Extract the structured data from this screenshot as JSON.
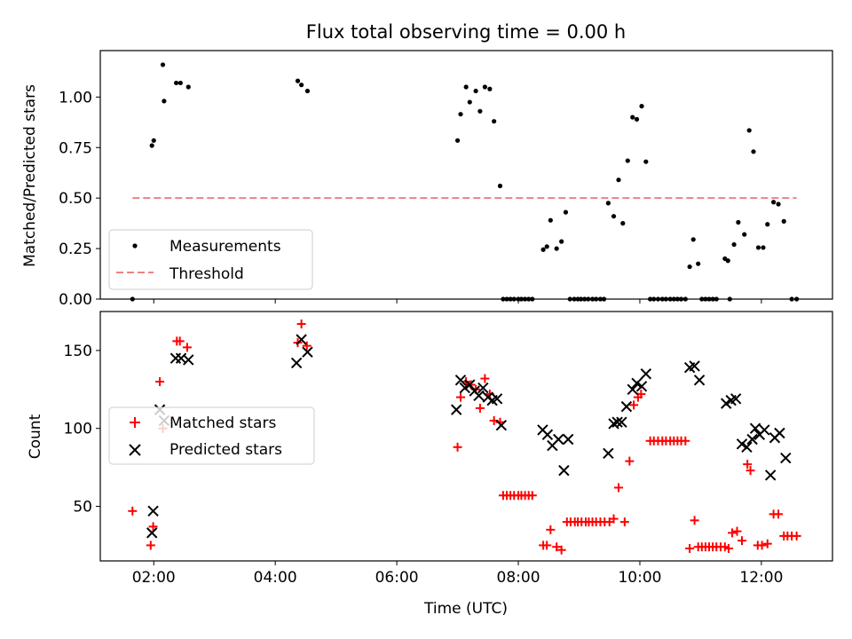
{
  "chart_data": [
    {
      "type": "scatter",
      "title": "Flux total observing time = 0.00 h",
      "xlabel": "",
      "ylabel": "Matched/Predicted stars",
      "xlim": [
        1.12,
        13.17
      ],
      "ylim": [
        0,
        1.23
      ],
      "yticks": [
        0.0,
        0.25,
        0.5,
        0.75,
        1.0
      ],
      "ytick_labels": [
        "0.00",
        "0.25",
        "0.50",
        "0.75",
        "1.00"
      ],
      "xticks": [
        2,
        4,
        6,
        8,
        10,
        12
      ],
      "legend_position": "lower-left",
      "series": [
        {
          "name": "Measurements",
          "kind": "points",
          "color": "#000000",
          "points": [
            [
              1.65,
              0
            ],
            [
              1.97,
              0.76
            ],
            [
              2.0,
              0.785
            ],
            [
              2.15,
              1.16
            ],
            [
              2.17,
              0.98
            ],
            [
              2.37,
              1.07
            ],
            [
              2.44,
              1.07
            ],
            [
              2.57,
              1.05
            ],
            [
              4.37,
              1.08
            ],
            [
              4.43,
              1.06
            ],
            [
              4.53,
              1.03
            ],
            [
              7.0,
              0.785
            ],
            [
              7.05,
              0.915
            ],
            [
              7.14,
              1.05
            ],
            [
              7.2,
              0.975
            ],
            [
              7.3,
              1.03
            ],
            [
              7.37,
              0.93
            ],
            [
              7.45,
              1.05
            ],
            [
              7.53,
              1.04
            ],
            [
              7.6,
              0.88
            ],
            [
              7.7,
              0.56
            ],
            [
              7.75,
              0
            ],
            [
              7.81,
              0
            ],
            [
              7.87,
              0
            ],
            [
              7.93,
              0
            ],
            [
              8.0,
              0
            ],
            [
              8.05,
              0
            ],
            [
              8.11,
              0
            ],
            [
              8.17,
              0
            ],
            [
              8.23,
              0
            ],
            [
              8.41,
              0.245
            ],
            [
              8.47,
              0.26
            ],
            [
              8.53,
              0.39
            ],
            [
              8.63,
              0.25
            ],
            [
              8.71,
              0.285
            ],
            [
              8.78,
              0.43
            ],
            [
              8.85,
              0
            ],
            [
              8.92,
              0
            ],
            [
              8.98,
              0
            ],
            [
              9.03,
              0
            ],
            [
              9.09,
              0
            ],
            [
              9.15,
              0
            ],
            [
              9.22,
              0
            ],
            [
              9.28,
              0
            ],
            [
              9.35,
              0
            ],
            [
              9.41,
              0
            ],
            [
              9.48,
              0.475
            ],
            [
              9.57,
              0.41
            ],
            [
              9.65,
              0.59
            ],
            [
              9.72,
              0.375
            ],
            [
              9.8,
              0.685
            ],
            [
              9.88,
              0.9
            ],
            [
              9.95,
              0.89
            ],
            [
              10.03,
              0.955
            ],
            [
              10.1,
              0.68
            ],
            [
              10.17,
              0
            ],
            [
              10.23,
              0
            ],
            [
              10.3,
              0
            ],
            [
              10.37,
              0
            ],
            [
              10.43,
              0
            ],
            [
              10.5,
              0
            ],
            [
              10.56,
              0
            ],
            [
              10.62,
              0
            ],
            [
              10.68,
              0
            ],
            [
              10.75,
              0
            ],
            [
              10.82,
              0.16
            ],
            [
              10.88,
              0.295
            ],
            [
              10.96,
              0.175
            ],
            [
              11.02,
              0
            ],
            [
              11.08,
              0
            ],
            [
              11.14,
              0
            ],
            [
              11.2,
              0
            ],
            [
              11.26,
              0
            ],
            [
              11.4,
              0.2
            ],
            [
              11.45,
              0.19
            ],
            [
              11.55,
              0.27
            ],
            [
              11.62,
              0.38
            ],
            [
              11.72,
              0.32
            ],
            [
              11.8,
              0.835
            ],
            [
              11.87,
              0.73
            ],
            [
              11.95,
              0.255
            ],
            [
              12.03,
              0.255
            ],
            [
              12.1,
              0.37
            ],
            [
              12.2,
              0.48
            ],
            [
              12.28,
              0.47
            ],
            [
              12.37,
              0.385
            ],
            [
              11.48,
              0
            ],
            [
              12.5,
              0
            ],
            [
              12.58,
              0
            ]
          ]
        },
        {
          "name": "Threshold",
          "kind": "dashed-line",
          "color": "#f08080",
          "x": [
            1.65,
            12.58
          ],
          "y": [
            0.5,
            0.5
          ]
        }
      ]
    },
    {
      "type": "scatter",
      "title": "",
      "xlabel": "Time (UTC)",
      "ylabel": "Count",
      "xlim": [
        1.12,
        13.17
      ],
      "ylim": [
        15,
        175
      ],
      "yticks": [
        50,
        100,
        150
      ],
      "ytick_labels": [
        "50",
        "100",
        "150"
      ],
      "xticks": [
        2,
        4,
        6,
        8,
        10,
        12
      ],
      "xtick_labels": [
        "02:00",
        "04:00",
        "06:00",
        "08:00",
        "10:00",
        "12:00"
      ],
      "legend_position": "center-left",
      "series": [
        {
          "name": "Matched stars",
          "kind": "plus",
          "color": "#ff0000",
          "points": [
            [
              1.65,
              47
            ],
            [
              1.95,
              25
            ],
            [
              1.99,
              37
            ],
            [
              2.1,
              130
            ],
            [
              2.15,
              100
            ],
            [
              2.38,
              156
            ],
            [
              2.43,
              156
            ],
            [
              2.55,
              152
            ],
            [
              4.37,
              155
            ],
            [
              4.43,
              167
            ],
            [
              4.52,
              153
            ],
            [
              7.0,
              88
            ],
            [
              7.05,
              120
            ],
            [
              7.14,
              130
            ],
            [
              7.22,
              128
            ],
            [
              7.3,
              125
            ],
            [
              7.37,
              113
            ],
            [
              7.45,
              132
            ],
            [
              7.53,
              122
            ],
            [
              7.6,
              105
            ],
            [
              7.7,
              104
            ],
            [
              7.75,
              57
            ],
            [
              7.81,
              57
            ],
            [
              7.87,
              57
            ],
            [
              7.93,
              57
            ],
            [
              8.0,
              57
            ],
            [
              8.05,
              57
            ],
            [
              8.11,
              57
            ],
            [
              8.17,
              57
            ],
            [
              8.23,
              57
            ],
            [
              8.41,
              25
            ],
            [
              8.47,
              25
            ],
            [
              8.53,
              35
            ],
            [
              8.63,
              24
            ],
            [
              8.71,
              22
            ],
            [
              8.8,
              40
            ],
            [
              8.86,
              40
            ],
            [
              8.93,
              40
            ],
            [
              8.98,
              40
            ],
            [
              9.04,
              40
            ],
            [
              9.11,
              40
            ],
            [
              9.16,
              40
            ],
            [
              9.22,
              40
            ],
            [
              9.28,
              40
            ],
            [
              9.35,
              40
            ],
            [
              9.42,
              40
            ],
            [
              9.5,
              40
            ],
            [
              9.57,
              42
            ],
            [
              9.65,
              62
            ],
            [
              9.75,
              40
            ],
            [
              9.83,
              79
            ],
            [
              9.9,
              115
            ],
            [
              9.97,
              120
            ],
            [
              10.02,
              122
            ],
            [
              10.17,
              92
            ],
            [
              10.23,
              92
            ],
            [
              10.3,
              92
            ],
            [
              10.37,
              92
            ],
            [
              10.43,
              92
            ],
            [
              10.5,
              92
            ],
            [
              10.56,
              92
            ],
            [
              10.62,
              92
            ],
            [
              10.68,
              92
            ],
            [
              10.75,
              92
            ],
            [
              10.82,
              23
            ],
            [
              10.9,
              41
            ],
            [
              10.96,
              24
            ],
            [
              11.02,
              24
            ],
            [
              11.08,
              24
            ],
            [
              11.14,
              24
            ],
            [
              11.2,
              24
            ],
            [
              11.26,
              24
            ],
            [
              11.33,
              24
            ],
            [
              11.4,
              24
            ],
            [
              11.46,
              23
            ],
            [
              11.52,
              33
            ],
            [
              11.6,
              34
            ],
            [
              11.68,
              28
            ],
            [
              11.77,
              77
            ],
            [
              11.82,
              73
            ],
            [
              11.94,
              25
            ],
            [
              12.01,
              25
            ],
            [
              12.1,
              26
            ],
            [
              12.2,
              45
            ],
            [
              12.28,
              45
            ],
            [
              12.37,
              31
            ],
            [
              12.43,
              31
            ],
            [
              12.5,
              31
            ],
            [
              12.58,
              31
            ]
          ]
        },
        {
          "name": "Predicted stars",
          "kind": "cross",
          "color": "#000000",
          "points": [
            [
              1.97,
              33
            ],
            [
              1.99,
              47
            ],
            [
              2.1,
              112
            ],
            [
              2.17,
              105
            ],
            [
              2.36,
              145
            ],
            [
              2.45,
              145
            ],
            [
              2.57,
              144
            ],
            [
              4.35,
              142
            ],
            [
              4.43,
              157
            ],
            [
              4.53,
              149
            ],
            [
              6.98,
              112
            ],
            [
              7.05,
              131
            ],
            [
              7.12,
              126
            ],
            [
              7.2,
              128
            ],
            [
              7.28,
              124
            ],
            [
              7.35,
              121
            ],
            [
              7.42,
              126
            ],
            [
              7.5,
              120
            ],
            [
              7.57,
              118
            ],
            [
              7.65,
              119
            ],
            [
              7.72,
              102
            ],
            [
              8.4,
              99
            ],
            [
              8.48,
              96
            ],
            [
              8.56,
              89
            ],
            [
              8.66,
              93
            ],
            [
              8.75,
              73
            ],
            [
              8.82,
              93
            ],
            [
              9.48,
              84
            ],
            [
              9.57,
              103
            ],
            [
              9.63,
              104
            ],
            [
              9.7,
              104
            ],
            [
              9.78,
              114
            ],
            [
              9.88,
              125
            ],
            [
              9.95,
              129
            ],
            [
              10.03,
              127
            ],
            [
              10.1,
              135
            ],
            [
              10.82,
              139
            ],
            [
              10.9,
              140
            ],
            [
              10.98,
              131
            ],
            [
              11.42,
              116
            ],
            [
              11.5,
              118
            ],
            [
              11.58,
              119
            ],
            [
              11.68,
              90
            ],
            [
              11.76,
              88
            ],
            [
              11.85,
              93
            ],
            [
              11.9,
              100
            ],
            [
              11.97,
              96
            ],
            [
              12.05,
              99
            ],
            [
              12.15,
              70
            ],
            [
              12.22,
              94
            ],
            [
              12.3,
              97
            ],
            [
              12.4,
              81
            ]
          ]
        }
      ]
    }
  ]
}
